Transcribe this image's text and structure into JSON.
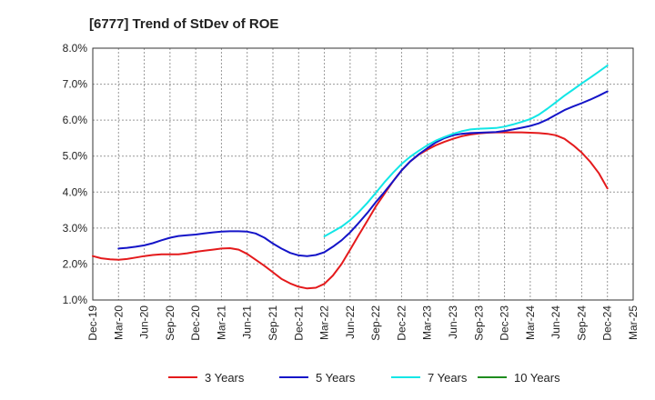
{
  "chart_data": {
    "type": "line",
    "title": "[6777]  Trend of StDev of ROE",
    "xlabel": "",
    "ylabel": "",
    "x": [
      "Dec-19",
      "Mar-20",
      "Jun-20",
      "Sep-20",
      "Dec-20",
      "Mar-21",
      "Jun-21",
      "Sep-21",
      "Dec-21",
      "Mar-22",
      "Jun-22",
      "Sep-22",
      "Dec-22",
      "Mar-23",
      "Jun-23",
      "Sep-23",
      "Dec-23",
      "Mar-24",
      "Jun-24",
      "Sep-24",
      "Dec-24",
      "Mar-25"
    ],
    "ylim": [
      1.0,
      8.0
    ],
    "yticks": [
      1.0,
      2.0,
      3.0,
      4.0,
      5.0,
      6.0,
      7.0,
      8.0
    ],
    "ytick_labels": [
      "1.0%",
      "2.0%",
      "3.0%",
      "4.0%",
      "5.0%",
      "6.0%",
      "7.0%",
      "8.0%"
    ],
    "grid": true,
    "legend_position": "bottom",
    "series": [
      {
        "name": "3 Years",
        "color": "#e41a1c",
        "x": [
          0,
          0.33,
          0.67,
          1,
          1.33,
          1.67,
          2,
          2.33,
          2.67,
          3,
          3.33,
          3.67,
          4,
          4.33,
          4.67,
          5,
          5.33,
          5.67,
          6,
          6.33,
          6.67,
          7,
          7.33,
          7.67,
          8,
          8.33,
          8.67,
          9,
          9.33,
          9.67,
          10,
          10.33,
          10.67,
          11,
          11.33,
          11.67,
          12,
          12.33,
          12.67,
          13,
          13.33,
          13.67,
          14,
          14.33,
          14.67,
          15,
          15.33,
          15.67,
          16,
          16.33,
          16.67,
          17,
          17.33,
          17.67,
          18,
          18.33,
          18.67,
          19,
          19.33,
          19.67,
          20
        ],
        "values": [
          2.22,
          2.16,
          2.13,
          2.12,
          2.14,
          2.18,
          2.22,
          2.25,
          2.27,
          2.27,
          2.27,
          2.3,
          2.34,
          2.37,
          2.4,
          2.43,
          2.44,
          2.4,
          2.28,
          2.12,
          1.95,
          1.77,
          1.59,
          1.46,
          1.37,
          1.32,
          1.34,
          1.45,
          1.68,
          2.0,
          2.4,
          2.8,
          3.2,
          3.6,
          3.95,
          4.3,
          4.6,
          4.85,
          5.04,
          5.18,
          5.3,
          5.4,
          5.48,
          5.55,
          5.6,
          5.63,
          5.65,
          5.66,
          5.66,
          5.66,
          5.66,
          5.65,
          5.64,
          5.62,
          5.58,
          5.48,
          5.3,
          5.1,
          4.84,
          4.52,
          4.1
        ]
      },
      {
        "name": "5 Years",
        "color": "#1414c8",
        "x": [
          1,
          1.33,
          1.67,
          2,
          2.33,
          2.67,
          3,
          3.33,
          3.67,
          4,
          4.33,
          4.67,
          5,
          5.33,
          5.67,
          6,
          6.33,
          6.67,
          7,
          7.33,
          7.67,
          8,
          8.33,
          8.67,
          9,
          9.33,
          9.67,
          10,
          10.33,
          10.67,
          11,
          11.33,
          11.67,
          12,
          12.33,
          12.67,
          13,
          13.33,
          13.67,
          14,
          14.33,
          14.67,
          15,
          15.33,
          15.67,
          16,
          16.33,
          16.67,
          17,
          17.33,
          17.67,
          18,
          18.33,
          18.67,
          19,
          19.33,
          19.67,
          20
        ],
        "values": [
          2.43,
          2.45,
          2.48,
          2.52,
          2.58,
          2.66,
          2.73,
          2.78,
          2.8,
          2.82,
          2.85,
          2.88,
          2.9,
          2.91,
          2.91,
          2.9,
          2.85,
          2.73,
          2.57,
          2.43,
          2.31,
          2.24,
          2.22,
          2.25,
          2.33,
          2.48,
          2.66,
          2.88,
          3.14,
          3.42,
          3.72,
          4.0,
          4.3,
          4.6,
          4.85,
          5.05,
          5.22,
          5.38,
          5.5,
          5.58,
          5.62,
          5.64,
          5.65,
          5.66,
          5.67,
          5.7,
          5.74,
          5.79,
          5.84,
          5.91,
          6.02,
          6.15,
          6.28,
          6.38,
          6.47,
          6.57,
          6.68,
          6.8
        ]
      },
      {
        "name": "7 Years",
        "color": "#12e6e6",
        "x": [
          9,
          9.33,
          9.67,
          10,
          10.33,
          10.67,
          11,
          11.33,
          11.67,
          12,
          12.33,
          12.67,
          13,
          13.33,
          13.67,
          14,
          14.33,
          14.67,
          15,
          15.33,
          15.67,
          16,
          16.33,
          16.67,
          17,
          17.33,
          17.67,
          18,
          18.33,
          18.67,
          19,
          19.33,
          19.67,
          20
        ],
        "values": [
          2.77,
          2.9,
          3.04,
          3.22,
          3.44,
          3.7,
          3.98,
          4.27,
          4.54,
          4.78,
          4.98,
          5.15,
          5.3,
          5.43,
          5.53,
          5.62,
          5.69,
          5.74,
          5.76,
          5.77,
          5.78,
          5.82,
          5.88,
          5.95,
          6.03,
          6.15,
          6.32,
          6.5,
          6.68,
          6.85,
          7.02,
          7.18,
          7.35,
          7.52
        ]
      },
      {
        "name": "10 Years",
        "color": "#1e8c1e",
        "x": [],
        "values": []
      }
    ]
  }
}
